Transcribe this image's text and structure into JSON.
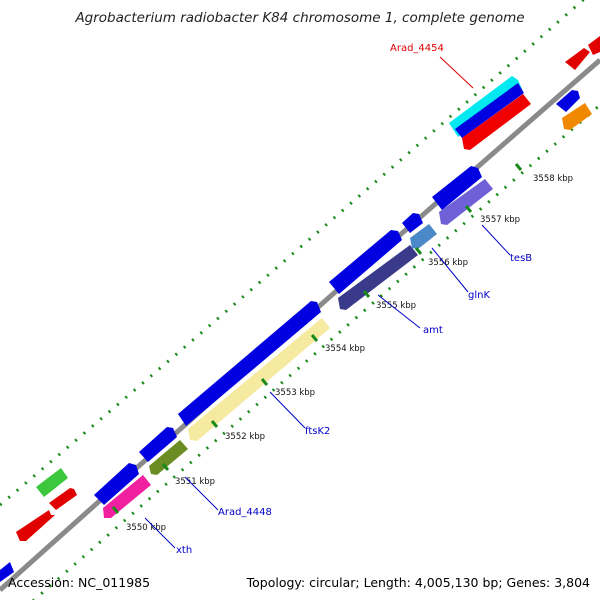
{
  "title": "Agrobacterium radiobacter K84 chromosome 1, complete genome",
  "footer": {
    "accession": "Accession: NC_011985",
    "summary": "Topology: circular; Length: 4,005,130 bp; Genes: 3,804"
  },
  "colors": {
    "backbone": "#888888",
    "label_default": "#0000c8",
    "label_highlight": "#e00000",
    "tick": "#1a8a1a"
  },
  "ticks": [
    {
      "label": "3550 kbp"
    },
    {
      "label": "3551 kbp"
    },
    {
      "label": "3552 kbp"
    },
    {
      "label": "3553 kbp"
    },
    {
      "label": "3554 kbp"
    },
    {
      "label": "3555 kbp"
    },
    {
      "label": "3556 kbp"
    },
    {
      "label": "3557 kbp"
    },
    {
      "label": "3558 kbp"
    }
  ],
  "gene_labels": [
    {
      "text": "xth"
    },
    {
      "text": "Arad_4448"
    },
    {
      "text": "ftsK2"
    },
    {
      "text": "amt"
    },
    {
      "text": "glnK"
    },
    {
      "text": "tesB"
    },
    {
      "text": "Arad_4454",
      "highlight": true
    }
  ]
}
